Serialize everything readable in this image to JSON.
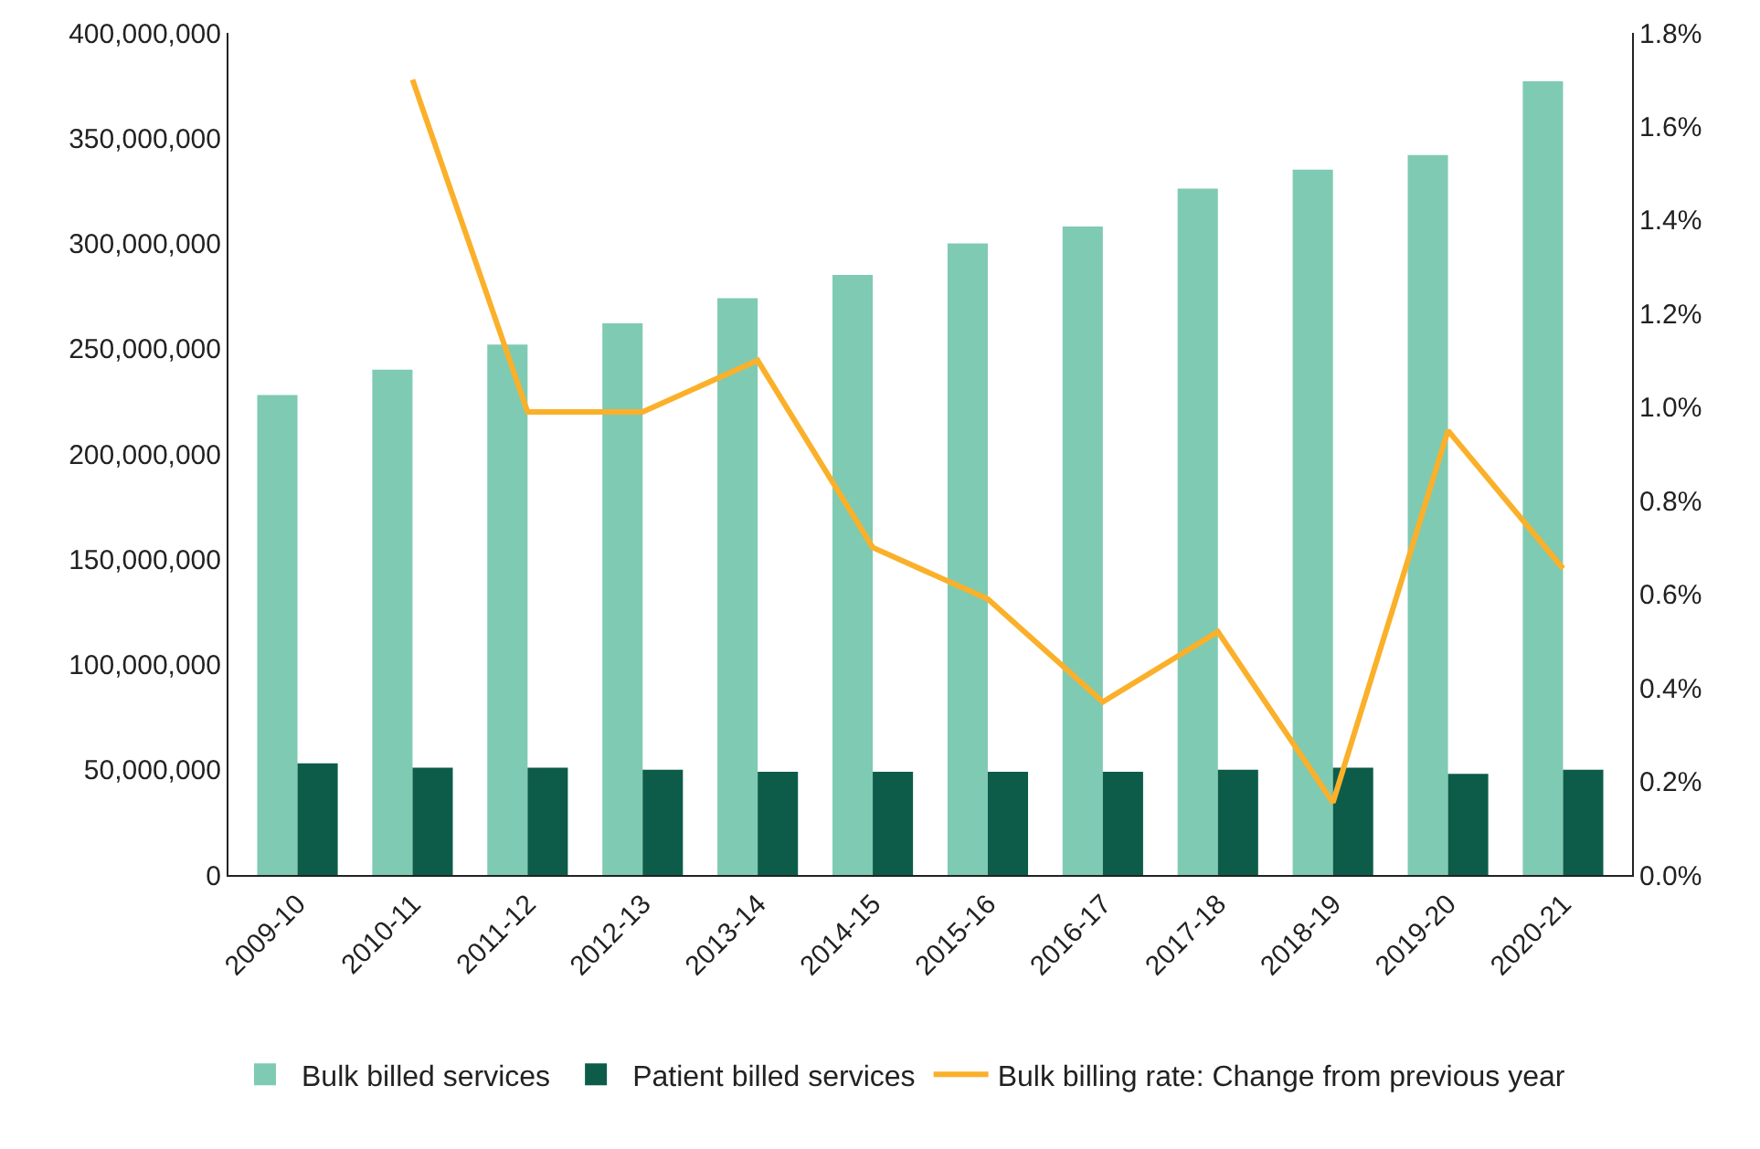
{
  "chart_data": {
    "type": "bar",
    "categories": [
      "2009-10",
      "2010-11",
      "2011-12",
      "2012-13",
      "2013-14",
      "2014-15",
      "2015-16",
      "2016-17",
      "2017-18",
      "2018-19",
      "2019-20",
      "2020-21"
    ],
    "series": [
      {
        "name": "Bulk billed services",
        "color": "#7fcab3",
        "values": [
          228000000,
          240000000,
          252000000,
          262000000,
          274000000,
          285000000,
          300000000,
          308000000,
          326000000,
          335000000,
          342000000,
          377000000
        ]
      },
      {
        "name": "Patient billed services",
        "color": "#0d5c4a",
        "values": [
          53000000,
          51000000,
          51000000,
          50000000,
          49000000,
          49000000,
          49000000,
          49000000,
          50000000,
          51000000,
          48000000,
          50000000
        ]
      },
      {
        "name": "Bulk billing rate: Change from previous year",
        "type": "line",
        "axis": "y2",
        "color": "#fbb02a",
        "values": [
          null,
          1.7,
          0.99,
          0.99,
          1.1,
          0.7,
          0.59,
          0.37,
          0.52,
          0.155,
          0.95,
          0.655
        ]
      }
    ],
    "ylim": [
      0,
      400000000
    ],
    "yticks": [
      {
        "value": 0,
        "label": "0"
      },
      {
        "value": 50000000,
        "label": "50,000,000"
      },
      {
        "value": 100000000,
        "label": "100,000,000"
      },
      {
        "value": 150000000,
        "label": "150,000,000"
      },
      {
        "value": 200000000,
        "label": "200,000,000"
      },
      {
        "value": 250000000,
        "label": "250,000,000"
      },
      {
        "value": 300000000,
        "label": "300,000,000"
      },
      {
        "value": 350000000,
        "label": "350,000,000"
      },
      {
        "value": 400000000,
        "label": "400,000,000"
      }
    ],
    "y2lim": [
      0,
      1.8
    ],
    "y2ticks": [
      {
        "value": 0,
        "label": "0.0%"
      },
      {
        "value": 0.2,
        "label": "0.2%"
      },
      {
        "value": 0.4,
        "label": "0.4%"
      },
      {
        "value": 0.6,
        "label": "0.6%"
      },
      {
        "value": 0.8,
        "label": "0.8%"
      },
      {
        "value": 1.0,
        "label": "1.0%"
      },
      {
        "value": 1.2,
        "label": "1.2%"
      },
      {
        "value": 1.4,
        "label": "1.4%"
      },
      {
        "value": 1.6,
        "label": "1.6%"
      },
      {
        "value": 1.8,
        "label": "1.8%"
      }
    ],
    "legend": "bottom"
  }
}
